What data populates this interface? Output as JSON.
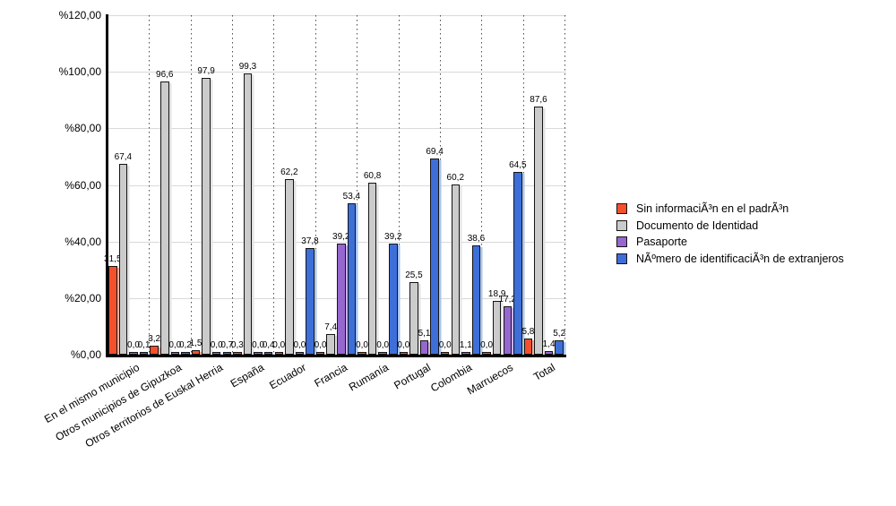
{
  "chart_data": {
    "type": "bar",
    "title": "",
    "categories": [
      "En el mismo municipio",
      "Otros municipios de Gipuzkoa",
      "Otros territorios de Euskal Herria",
      "España",
      "Ecuador",
      "Francia",
      "Rumanía",
      "Portugal",
      "Colombia",
      "Marruecos",
      "Total"
    ],
    "series": [
      {
        "name": "Sin informaciÃ³n en el padrÃ³n",
        "color": "#f5502c",
        "shadow": "#f3b0a0",
        "values": [
          31.5,
          3.2,
          1.5,
          0.3,
          0.0,
          0.0,
          0.0,
          0.0,
          0.0,
          0.0,
          5.8
        ]
      },
      {
        "name": "Documento de Identidad",
        "color": "#cbcbcb",
        "shadow": "#e3e3e3",
        "values": [
          67.4,
          96.6,
          97.9,
          99.3,
          62.2,
          7.4,
          60.8,
          25.5,
          60.2,
          18.9,
          87.6
        ]
      },
      {
        "name": "Pasaporte",
        "color": "#9667cf",
        "shadow": "#cab3e8",
        "values": [
          0.0,
          0.0,
          0.0,
          0.0,
          0.0,
          39.2,
          0.0,
          5.1,
          1.1,
          17.2,
          1.4
        ]
      },
      {
        "name": "NÃºmero de identificaciÃ³n de extranjeros",
        "color": "#3e6fd8",
        "shadow": "#a8c5ee",
        "values": [
          0.1,
          0.2,
          0.7,
          0.4,
          37.8,
          53.4,
          39.2,
          69.4,
          38.6,
          64.5,
          5.2
        ]
      }
    ],
    "ylim": [
      0,
      120
    ],
    "ytick_labels": [
      "%120,00",
      "%100,00",
      "%80,00",
      "%60,00",
      "%40,00",
      "%20,00",
      "%0,00"
    ],
    "decimal_separator": ",",
    "value_label_decimals": 1,
    "grid": true,
    "legend_position": "right"
  }
}
